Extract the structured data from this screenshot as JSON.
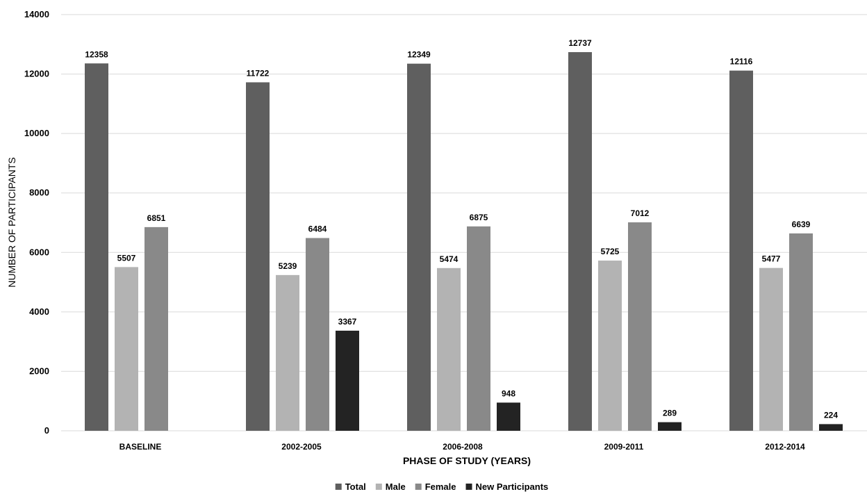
{
  "chart_data": {
    "type": "bar",
    "xlabel": "PHASE OF STUDY (YEARS)",
    "ylabel": "NUMBER OF PARTICIPANTS",
    "ylim": [
      0,
      14000
    ],
    "yticks": [
      0,
      2000,
      4000,
      6000,
      8000,
      10000,
      12000,
      14000
    ],
    "grid": true,
    "legend_position": "bottom",
    "categories": [
      "BASELINE",
      "2002-2005",
      "2006-2008",
      "2009-2011",
      "2012-2014"
    ],
    "series": [
      {
        "name": "Total",
        "color": "#5f5f5f",
        "values": [
          12358,
          11722,
          12349,
          12737,
          12116
        ]
      },
      {
        "name": "Male",
        "color": "#b3b3b3",
        "values": [
          5507,
          5239,
          5474,
          5725,
          5477
        ]
      },
      {
        "name": "Female",
        "color": "#898989",
        "values": [
          6851,
          6484,
          6875,
          7012,
          6639
        ]
      },
      {
        "name": "New Participants",
        "color": "#232323",
        "values": [
          null,
          3367,
          948,
          289,
          224
        ]
      }
    ]
  }
}
